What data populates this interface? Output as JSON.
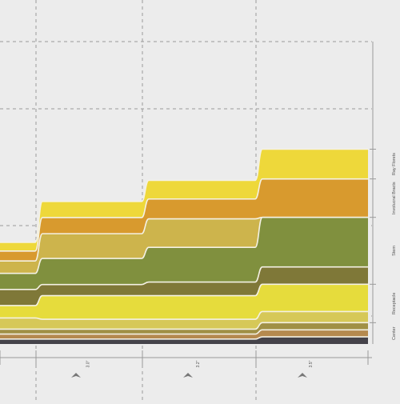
{
  "chart_data": {
    "type": "area",
    "title": "",
    "xlabel": "",
    "ylabel": "",
    "x": [
      0,
      1,
      2,
      3
    ],
    "x_tick_labels": [
      "",
      "3.0\"",
      "3.2\"",
      "3.5\""
    ],
    "stack_order": "bottom-to-top",
    "series": [
      {
        "color": "#45434a",
        "values": [
          2.0,
          2.0,
          2.0,
          2.9
        ]
      },
      {
        "color": "#b5894e",
        "values": [
          2.0,
          2.0,
          2.0,
          2.8
        ]
      },
      {
        "color": "#a09045",
        "values": [
          2.0,
          2.0,
          2.0,
          2.9
        ]
      },
      {
        "color": "#d6c858",
        "values": [
          4.5,
          4.0,
          4.0,
          4.5
        ]
      },
      {
        "color": "#e6dc3c",
        "values": [
          5.0,
          9.5,
          9.5,
          11.0
        ]
      },
      {
        "color": "#7f7838",
        "values": [
          6.5,
          4.5,
          5.5,
          7.0
        ]
      },
      {
        "color": "#80903e",
        "values": [
          6.5,
          10.5,
          14.0,
          20.0
        ]
      },
      {
        "color": "#cdb44c",
        "values": [
          5.0,
          10.0,
          11.5,
          0
        ]
      },
      {
        "color": "#d89a2e",
        "values": [
          4.0,
          6.5,
          8.0,
          15.5
        ]
      },
      {
        "color": "#eed83a",
        "values": [
          3.5,
          6.5,
          7.5,
          12.0
        ]
      }
    ],
    "categories": [
      {
        "label": "Center",
        "from": 0,
        "to": 3
      },
      {
        "label": "Receptacle",
        "from": 3,
        "to": 5
      },
      {
        "label": "Stem",
        "from": 5,
        "to": 7
      },
      {
        "label": "Involucral Bracts",
        "from": 7,
        "to": 9
      },
      {
        "label": "Ray Florets",
        "from": 9,
        "to": 10
      }
    ],
    "ymax": 122,
    "grid": true
  }
}
